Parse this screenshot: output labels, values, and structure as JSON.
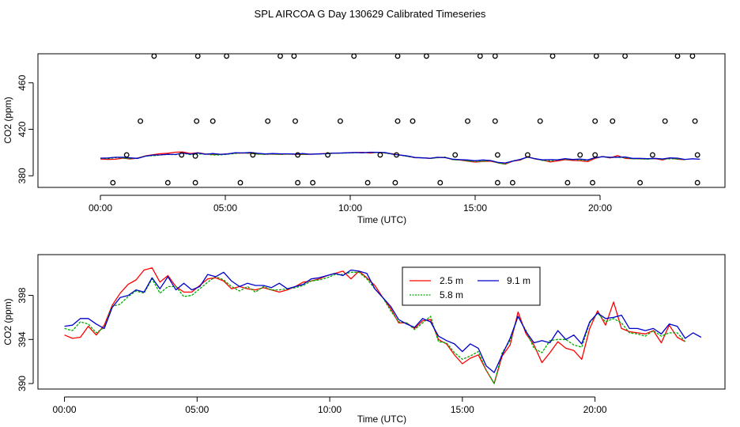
{
  "title": "SPL AIRCOA G  Day 130629  Calibrated Timeseries",
  "chart_data": [
    {
      "type": "scatter+line",
      "panel": "top",
      "xlabel": "Time (UTC)",
      "ylabel": "CO2 (ppm)",
      "xlim": [
        -2.5,
        25.0
      ],
      "ylim": [
        370,
        485
      ],
      "xticks": [
        {
          "value": 0,
          "label": "00:00"
        },
        {
          "value": 5,
          "label": "05:00"
        },
        {
          "value": 10,
          "label": "10:00"
        },
        {
          "value": 15,
          "label": "15:00"
        },
        {
          "value": 20,
          "label": "20:00"
        }
      ],
      "yticks": [
        {
          "value": 380,
          "label": "380"
        },
        {
          "value": 420,
          "label": "420"
        },
        {
          "value": 460,
          "label": "460"
        }
      ],
      "calibration_points": [
        [
          0.5,
          374
        ],
        [
          2.7,
          374
        ],
        [
          3.8,
          374
        ],
        [
          5.6,
          374
        ],
        [
          7.9,
          374
        ],
        [
          8.5,
          374
        ],
        [
          10.7,
          374
        ],
        [
          11.8,
          374
        ],
        [
          13.6,
          374
        ],
        [
          15.9,
          374
        ],
        [
          16.5,
          374
        ],
        [
          18.7,
          374
        ],
        [
          19.7,
          374
        ],
        [
          21.6,
          374
        ],
        [
          23.9,
          374
        ],
        [
          1.05,
          398
        ],
        [
          3.25,
          398
        ],
        [
          3.8,
          397
        ],
        [
          6.1,
          398
        ],
        [
          7.9,
          398
        ],
        [
          9.1,
          398
        ],
        [
          11.2,
          398
        ],
        [
          11.85,
          398
        ],
        [
          14.2,
          398
        ],
        [
          15.9,
          398
        ],
        [
          17.1,
          398
        ],
        [
          19.2,
          398
        ],
        [
          19.8,
          398
        ],
        [
          22.1,
          398
        ],
        [
          23.9,
          398
        ],
        [
          1.6,
          427
        ],
        [
          3.85,
          427
        ],
        [
          4.5,
          427
        ],
        [
          6.7,
          427
        ],
        [
          7.8,
          427
        ],
        [
          9.6,
          427
        ],
        [
          11.9,
          427
        ],
        [
          12.5,
          427
        ],
        [
          14.7,
          427
        ],
        [
          15.8,
          427
        ],
        [
          17.6,
          427
        ],
        [
          19.8,
          427
        ],
        [
          20.5,
          427
        ],
        [
          22.6,
          427
        ],
        [
          23.8,
          427
        ],
        [
          2.15,
          483
        ],
        [
          3.9,
          483
        ],
        [
          5.05,
          483
        ],
        [
          7.2,
          483
        ],
        [
          7.75,
          483
        ],
        [
          10.15,
          483
        ],
        [
          11.9,
          483
        ],
        [
          13.05,
          483
        ],
        [
          15.2,
          483
        ],
        [
          15.8,
          483
        ],
        [
          18.1,
          483
        ],
        [
          19.85,
          483
        ],
        [
          21.0,
          483
        ],
        [
          23.1,
          483
        ],
        [
          23.7,
          483
        ]
      ],
      "series_ref": "shared"
    },
    {
      "type": "line",
      "panel": "bottom",
      "xlabel": "Time (UTC)",
      "ylabel": "CO2 (ppm)",
      "xlim": [
        -1.0,
        24.9
      ],
      "ylim": [
        389.5,
        401.7
      ],
      "xticks": [
        {
          "value": 0,
          "label": "00:00"
        },
        {
          "value": 5,
          "label": "05:00"
        },
        {
          "value": 10,
          "label": "10:00"
        },
        {
          "value": 15,
          "label": "15:00"
        },
        {
          "value": 20,
          "label": "20:00"
        }
      ],
      "yticks": [
        {
          "value": 390,
          "label": "390"
        },
        {
          "value": 394,
          "label": "394"
        },
        {
          "value": 398,
          "label": "398"
        }
      ],
      "legend": "top-right-center"
    }
  ],
  "series": [
    {
      "name": "2.5 m",
      "color": "#ff0000",
      "x": [
        0.0,
        0.3,
        0.6,
        0.9,
        1.2,
        1.5,
        1.8,
        2.1,
        2.4,
        2.7,
        3.0,
        3.3,
        3.6,
        3.9,
        4.2,
        4.5,
        4.8,
        5.1,
        5.4,
        5.7,
        6.0,
        6.3,
        6.6,
        6.9,
        7.2,
        7.5,
        7.8,
        8.1,
        8.4,
        8.7,
        9.0,
        9.3,
        9.6,
        9.9,
        10.2,
        10.5,
        10.8,
        11.1,
        11.4,
        11.7,
        12.0,
        12.3,
        12.6,
        12.9,
        13.2,
        13.5,
        13.8,
        14.1,
        14.4,
        14.7,
        15.0,
        15.3,
        15.6,
        15.9,
        16.2,
        16.5,
        16.8,
        17.1,
        17.4,
        17.7,
        18.0,
        18.3,
        18.6,
        18.9,
        19.2,
        19.5,
        19.8,
        20.1,
        20.4,
        20.7,
        21.0,
        21.3,
        21.6,
        21.9,
        22.2,
        22.5,
        22.8,
        23.1,
        23.4
      ],
      "values": [
        394.4,
        394.1,
        394.2,
        395.2,
        394.4,
        395.3,
        397.1,
        398.2,
        399.0,
        399.4,
        400.3,
        400.5,
        399.2,
        399.8,
        398.8,
        398.3,
        398.3,
        398.9,
        399.5,
        399.6,
        399.3,
        398.6,
        398.8,
        398.6,
        398.5,
        398.7,
        398.5,
        398.3,
        398.5,
        398.8,
        399.2,
        399.3,
        399.5,
        399.8,
        400.0,
        400.2,
        399.5,
        400.2,
        399.6,
        398.9,
        397.8,
        396.8,
        395.5,
        395.5,
        395.0,
        395.7,
        395.8,
        394.0,
        393.6,
        392.6,
        391.8,
        392.3,
        392.6,
        391.2,
        390.0,
        392.5,
        393.5,
        396.5,
        394.5,
        393.5,
        391.9,
        392.8,
        393.8,
        393.2,
        393.0,
        392.2,
        395.0,
        396.6,
        395.3,
        397.4,
        395.0,
        394.7,
        394.6,
        394.5,
        394.8,
        393.7,
        395.3,
        394.2,
        393.8
      ]
    },
    {
      "name": "5.8 m",
      "color": "#00aa00",
      "x": [
        0.0,
        0.3,
        0.6,
        0.9,
        1.2,
        1.5,
        1.8,
        2.1,
        2.4,
        2.7,
        3.0,
        3.3,
        3.6,
        3.9,
        4.2,
        4.5,
        4.8,
        5.1,
        5.4,
        5.7,
        6.0,
        6.3,
        6.6,
        6.9,
        7.2,
        7.5,
        7.8,
        8.1,
        8.4,
        8.7,
        9.0,
        9.3,
        9.6,
        9.9,
        10.2,
        10.5,
        10.8,
        11.1,
        11.4,
        11.7,
        12.0,
        12.3,
        12.6,
        12.9,
        13.2,
        13.5,
        13.8,
        14.1,
        14.4,
        14.7,
        15.0,
        15.3,
        15.6,
        15.9,
        16.2,
        16.5,
        16.8,
        17.1,
        17.4,
        17.7,
        18.0,
        18.3,
        18.6,
        18.9,
        19.2,
        19.5,
        19.8,
        20.1,
        20.4,
        20.7,
        21.0,
        21.3,
        21.6,
        21.9,
        22.2,
        22.5,
        22.8,
        23.1,
        23.4
      ],
      "values": [
        395.0,
        394.8,
        395.6,
        395.4,
        394.6,
        395.1,
        397.0,
        397.2,
        397.9,
        398.4,
        398.2,
        399.5,
        398.2,
        398.8,
        398.8,
        397.9,
        398.0,
        398.6,
        399.2,
        399.7,
        399.4,
        398.8,
        398.4,
        398.8,
        398.3,
        398.8,
        398.5,
        398.5,
        398.6,
        398.7,
        398.9,
        399.3,
        399.4,
        399.6,
        399.9,
        399.9,
        400.1,
        400.1,
        399.5,
        398.6,
        397.8,
        396.6,
        395.6,
        395.5,
        394.9,
        395.5,
        396.1,
        393.8,
        393.7,
        392.8,
        392.2,
        392.5,
        392.9,
        391.2,
        390.0,
        392.8,
        393.9,
        396.1,
        394.8,
        393.2,
        392.8,
        393.9,
        394.0,
        394.0,
        393.5,
        393.3,
        395.5,
        396.4,
        395.6,
        395.9,
        395.5,
        394.6,
        394.5,
        394.3,
        394.8,
        394.3,
        394.6,
        394.6,
        393.8
      ]
    },
    {
      "name": "9.1 m",
      "color": "#0000cc",
      "x": [
        0.0,
        0.3,
        0.6,
        0.9,
        1.2,
        1.5,
        1.8,
        2.1,
        2.4,
        2.7,
        3.0,
        3.3,
        3.6,
        3.9,
        4.2,
        4.5,
        4.8,
        5.1,
        5.4,
        5.7,
        6.0,
        6.3,
        6.6,
        6.9,
        7.2,
        7.5,
        7.8,
        8.1,
        8.4,
        8.7,
        9.0,
        9.3,
        9.6,
        9.9,
        10.2,
        10.5,
        10.8,
        11.1,
        11.4,
        11.7,
        12.0,
        12.3,
        12.6,
        12.9,
        13.2,
        13.5,
        13.8,
        14.1,
        14.4,
        14.7,
        15.0,
        15.3,
        15.6,
        15.9,
        16.2,
        16.5,
        16.8,
        17.1,
        17.4,
        17.7,
        18.0,
        18.3,
        18.6,
        18.9,
        19.2,
        19.5,
        19.8,
        20.1,
        20.4,
        20.7,
        21.0,
        21.3,
        21.6,
        21.9,
        22.2,
        22.5,
        22.8,
        23.1,
        23.4,
        23.7,
        24.0
      ],
      "values": [
        395.2,
        395.3,
        395.9,
        395.9,
        395.4,
        395.0,
        396.9,
        397.8,
        398.0,
        398.5,
        398.3,
        399.6,
        398.6,
        399.7,
        398.5,
        399.1,
        398.5,
        398.8,
        399.9,
        399.7,
        400.1,
        399.3,
        398.8,
        399.1,
        398.9,
        398.9,
        398.7,
        399.1,
        398.6,
        398.8,
        399.0,
        399.5,
        399.6,
        399.8,
        400.0,
        399.8,
        400.3,
        400.2,
        400.0,
        398.6,
        397.8,
        397.0,
        395.8,
        395.4,
        395.1,
        395.9,
        395.6,
        394.3,
        393.9,
        393.6,
        392.9,
        393.6,
        393.2,
        391.6,
        391.0,
        392.6,
        394.1,
        396.1,
        394.7,
        393.7,
        393.9,
        393.7,
        394.8,
        394.0,
        394.4,
        393.6,
        395.6,
        396.4,
        395.9,
        396.0,
        396.2,
        395.0,
        395.0,
        394.8,
        395.0,
        394.5,
        395.4,
        395.2,
        394.1,
        394.6,
        394.2
      ]
    }
  ]
}
